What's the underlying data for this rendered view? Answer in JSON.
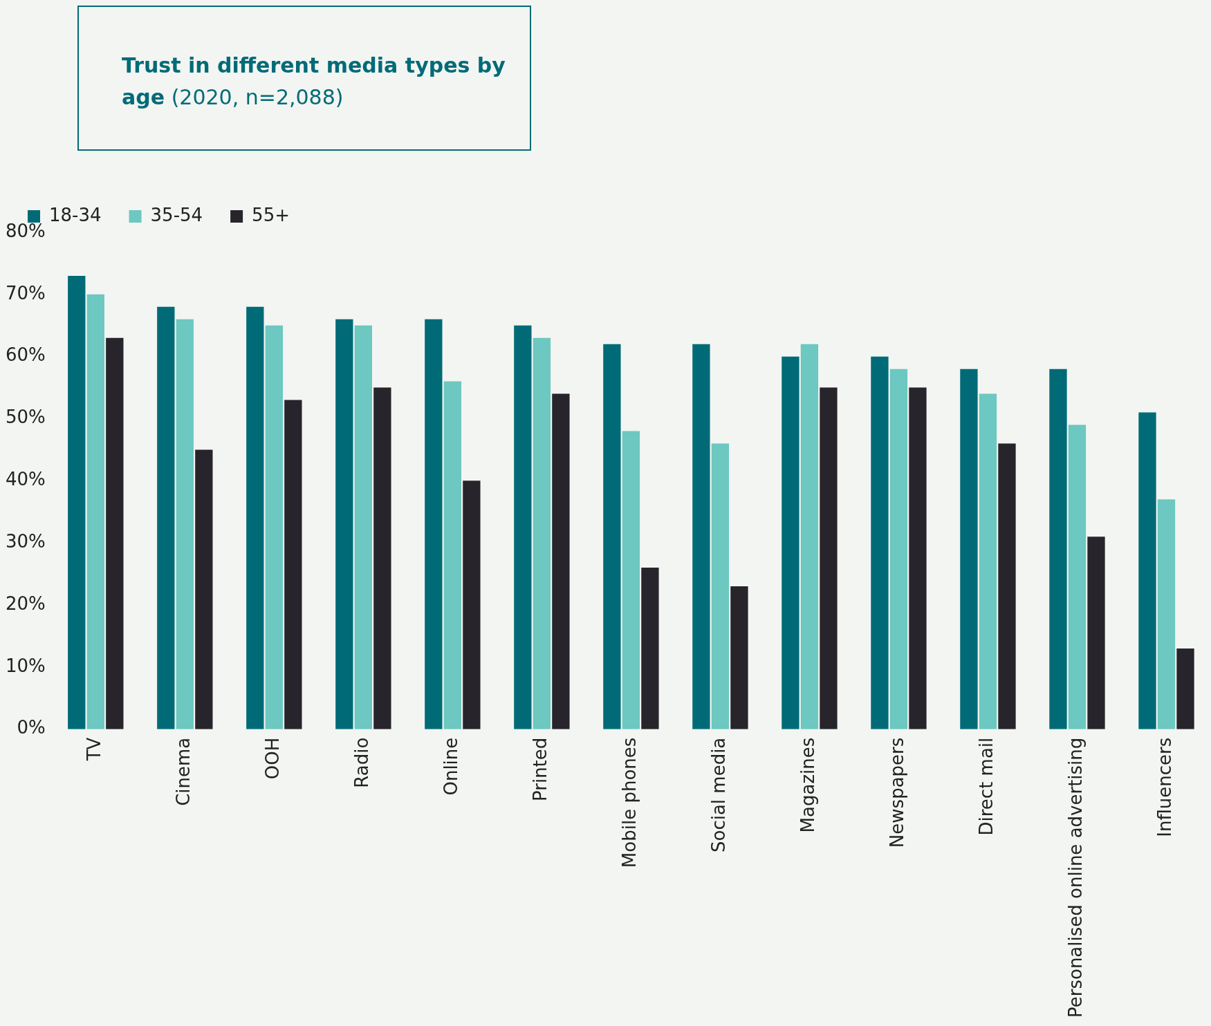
{
  "chart_data": {
    "type": "bar",
    "title": "Trust in different media types by age",
    "subtitle": "(2020, n=2,088)",
    "categories": [
      "TV",
      "Cinema",
      "OOH",
      "Radio",
      "Online",
      "Printed",
      "Mobile phones",
      "Social media",
      "Magazines",
      "Newspapers",
      "Direct mail",
      "Personalised online advertising",
      "Influencers"
    ],
    "series": [
      {
        "name": "18-34",
        "color": "#006b77",
        "values": [
          73,
          68,
          68,
          66,
          66,
          65,
          62,
          62,
          60,
          60,
          58,
          58,
          51
        ]
      },
      {
        "name": "35-54",
        "color": "#6cc8c0",
        "values": [
          70,
          66,
          65,
          65,
          56,
          63,
          48,
          46,
          62,
          58,
          54,
          49,
          37
        ]
      },
      {
        "name": "55+",
        "color": "#27252b",
        "values": [
          63,
          45,
          53,
          55,
          40,
          54,
          26,
          23,
          55,
          55,
          46,
          31,
          13
        ]
      }
    ],
    "ylim": [
      0,
      80
    ],
    "yticks": [
      {
        "value": 0,
        "label": "0%"
      },
      {
        "value": 10,
        "label": "10%"
      },
      {
        "value": 20,
        "label": "20%"
      },
      {
        "value": 30,
        "label": "30%"
      },
      {
        "value": 40,
        "label": "40%"
      },
      {
        "value": 50,
        "label": "50%"
      },
      {
        "value": 60,
        "label": "60%"
      },
      {
        "value": 70,
        "label": "70%"
      },
      {
        "value": 80,
        "label": "80%"
      }
    ],
    "grid": false,
    "legend": "top left"
  }
}
